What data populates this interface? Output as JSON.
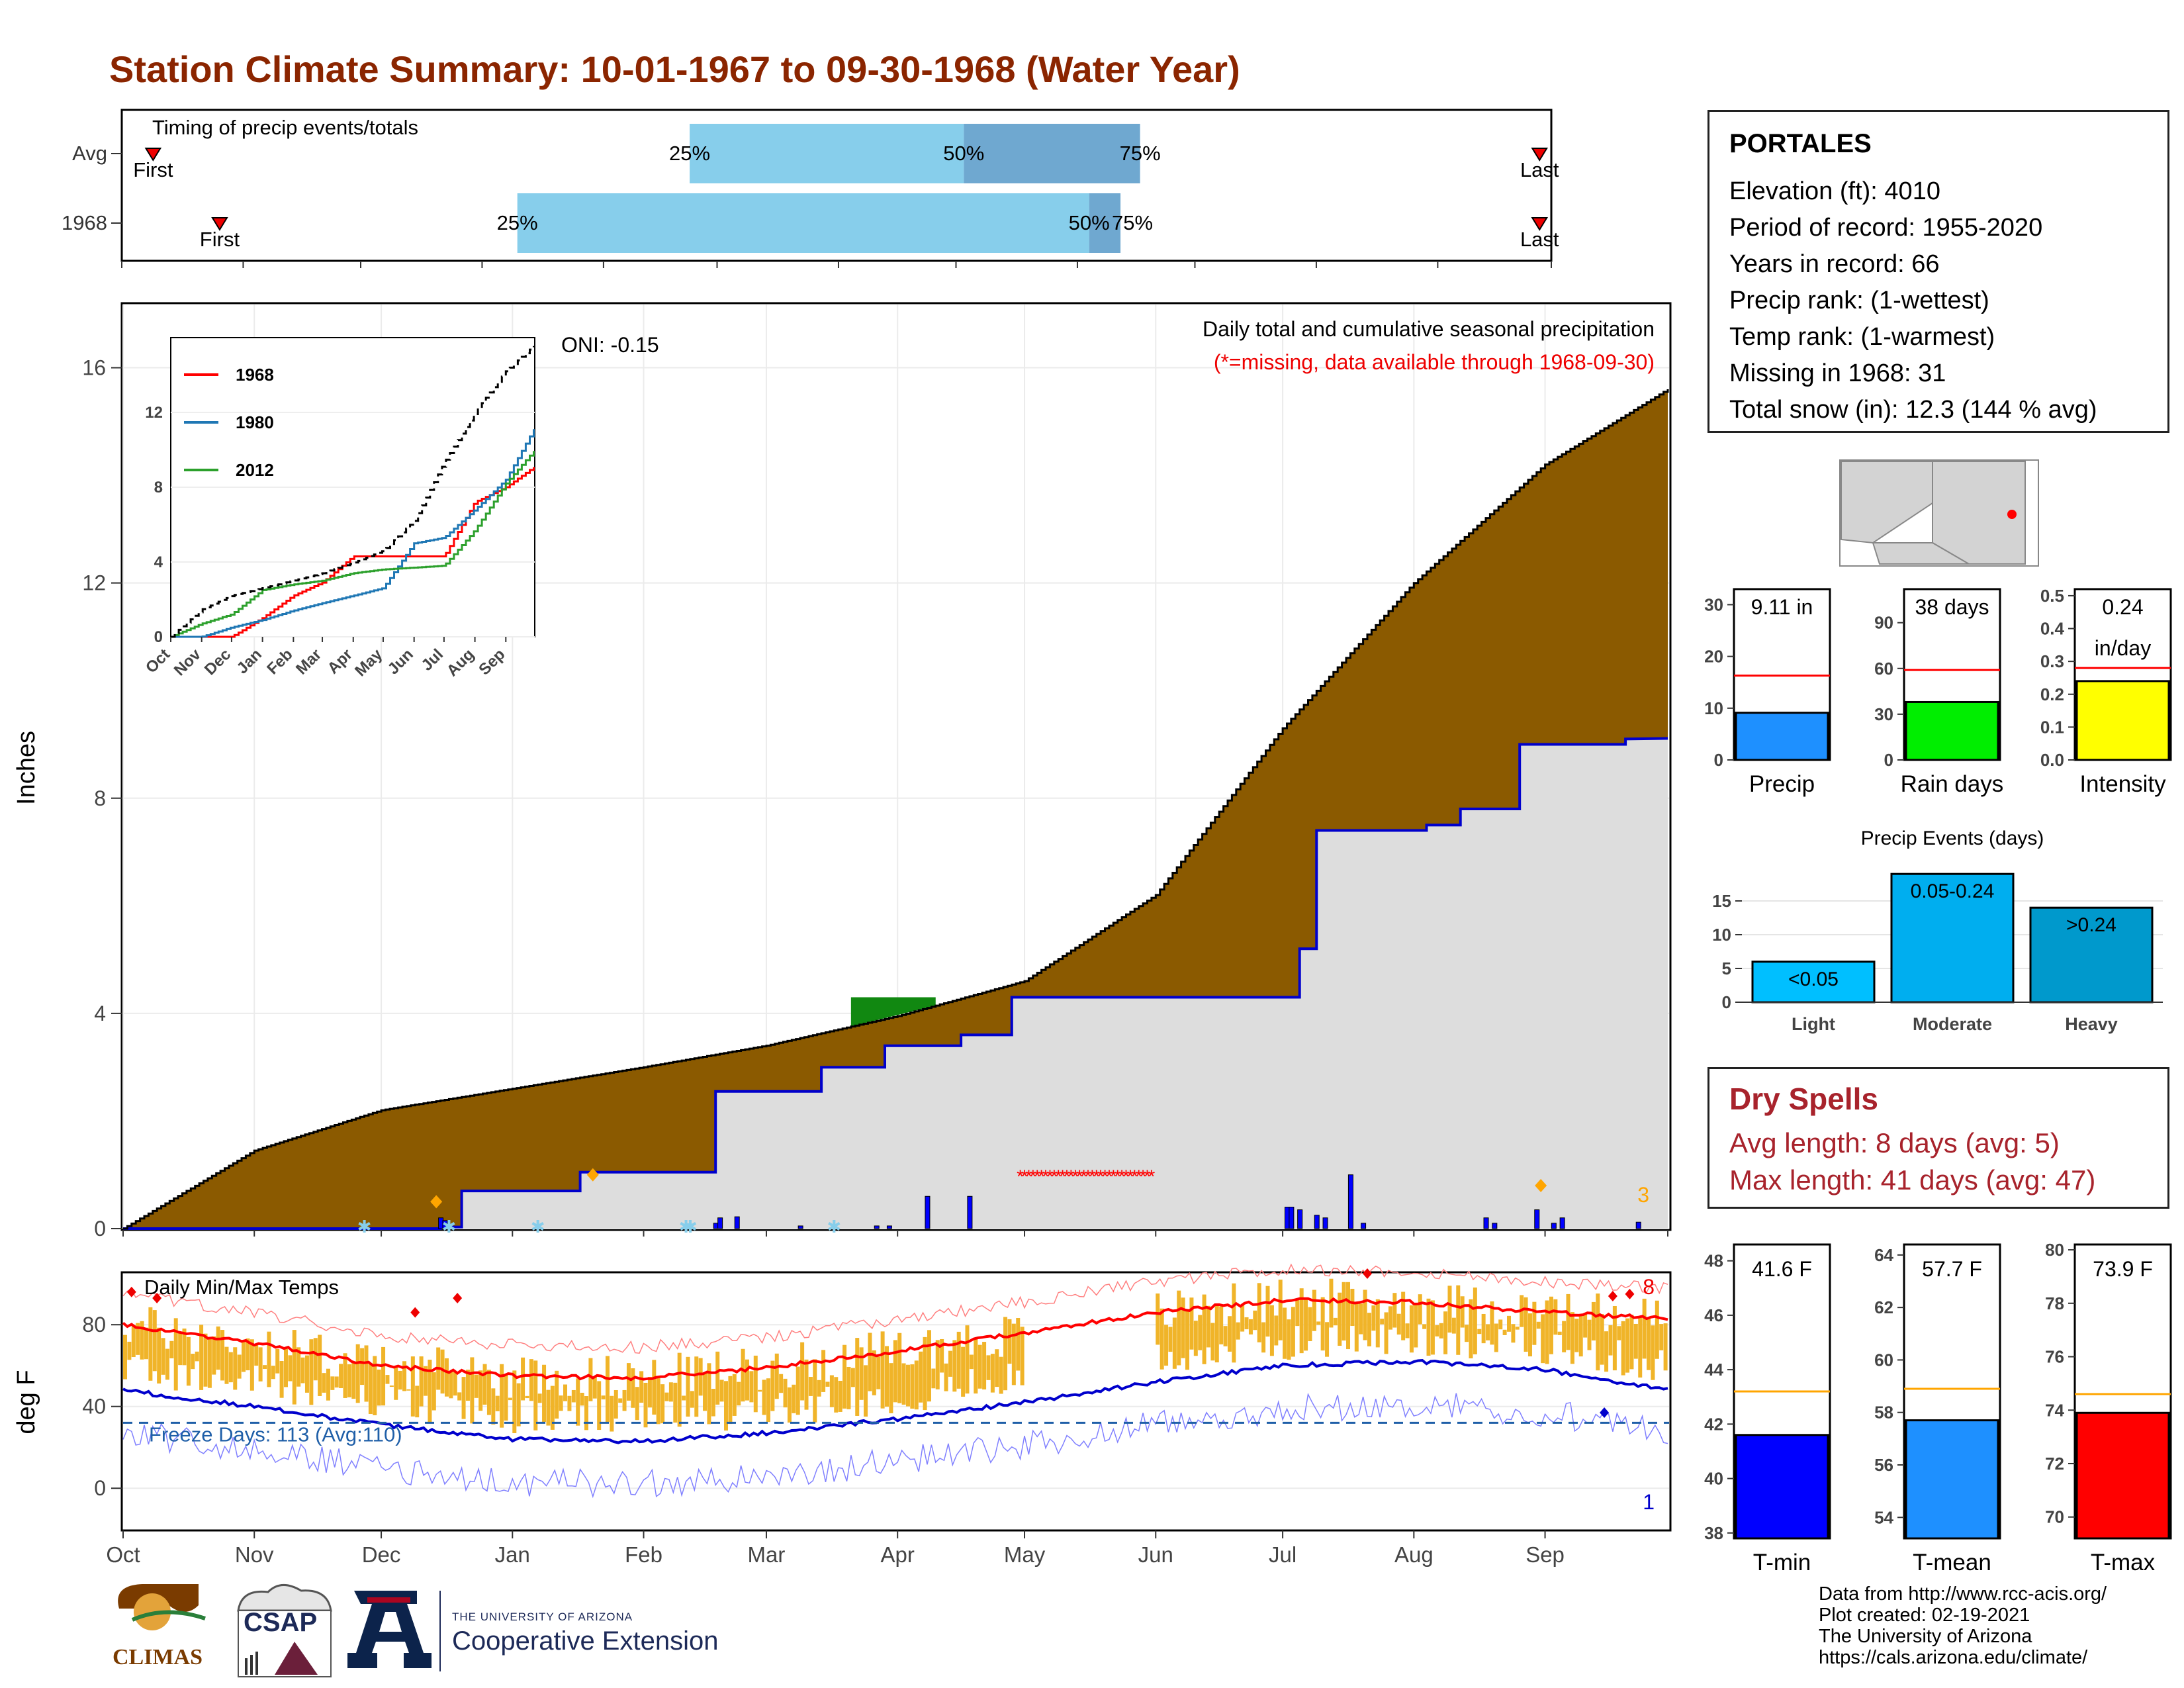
{
  "title": "Station Climate Summary: 10-01-1967 to 09-30-1968 (Water Year)",
  "colors": {
    "title": "#8b2500",
    "cumulative_fill": "#8b5a00",
    "avg_fill": "#dddddd",
    "avg_line": "#0000cc",
    "daily_bars": "#0000ff",
    "missing": "#ff0000",
    "timing_light": "#87ceeb",
    "timing_dark": "#6fa8d0",
    "temp_range": "#f0b429",
    "tmax_avg": "#ff0000",
    "tmin_avg": "#0000cc"
  },
  "timing": {
    "label": "Timing of precip events/totals",
    "rows": [
      "Avg",
      "1968"
    ],
    "first_label": "First",
    "last_label": "Last",
    "p25_label": "25%",
    "p50_label": "50%",
    "p75_label": "75%"
  },
  "precip_panel": {
    "ylabel": "Inches",
    "oni": "ONI: -0.15",
    "legend_title": "Daily total and cumulative seasonal precipitation",
    "missing_note": "(*=missing, data available through 1968-09-30)",
    "count_label": "3"
  },
  "inset": {
    "series": [
      "1968",
      "1980",
      "2012"
    ],
    "months": [
      "Oct",
      "Nov",
      "Dec",
      "Jan",
      "Feb",
      "Mar",
      "Apr",
      "May",
      "Jun",
      "Jul",
      "Aug",
      "Sep"
    ]
  },
  "temp_panel": {
    "ylabel": "deg F",
    "label": "Daily Min/Max Temps",
    "freeze": "Freeze Days: 113 (Avg:110)",
    "max_count": "8",
    "min_count": "1"
  },
  "months": [
    "Oct",
    "Nov",
    "Dec",
    "Jan",
    "Feb",
    "Mar",
    "Apr",
    "May",
    "Jun",
    "Jul",
    "Aug",
    "Sep"
  ],
  "station": {
    "name": "PORTALES",
    "lines": [
      "Elevation (ft): 4010",
      "Period of record: 1955-2020",
      "Years in record: 66",
      "Precip rank:  (1-wettest)",
      "Temp rank:  (1-warmest)",
      "Missing in 1968: 31",
      "Total snow (in): 12.3 (144 % avg)"
    ]
  },
  "summary_bars": [
    {
      "name": "Precip",
      "label": "9.11 in",
      "value": 9.11,
      "avg": 16.3,
      "ymax": 33,
      "ticks": [
        0,
        10,
        20,
        30
      ],
      "color": "#1e90ff"
    },
    {
      "name": "Rain days",
      "label": "38 days",
      "value": 38,
      "avg": 59,
      "ymax": 112,
      "ticks": [
        0,
        30,
        60,
        90
      ],
      "color": "#00ee00"
    },
    {
      "name": "Intensity",
      "label": "0.24",
      "label2": "in/day",
      "value": 0.24,
      "avg": 0.28,
      "ymax": 0.52,
      "ticks": [
        "0.0",
        "0.1",
        "0.2",
        "0.3",
        "0.4",
        "0.5"
      ],
      "color": "#ffff00"
    }
  ],
  "events": {
    "title": "Precip Events (days)",
    "categories": [
      "Light",
      "Moderate",
      "Heavy"
    ],
    "labels": [
      "<0.05",
      "0.05-0.24",
      ">0.24"
    ],
    "values": [
      6,
      19,
      14
    ],
    "ticks": [
      0,
      5,
      10,
      15
    ]
  },
  "dry": {
    "title": "Dry Spells",
    "avg": "Avg length: 8 days (avg: 5)",
    "max": "Max length: 41 days (avg: 47)"
  },
  "temp_bars": [
    {
      "name": "T-min",
      "label": "41.6 F",
      "value": 41.6,
      "avg": 43.2,
      "ymin": 37.8,
      "ymax": 48.6,
      "ticks": [
        38,
        40,
        42,
        44,
        46,
        48
      ],
      "color": "#0000ff"
    },
    {
      "name": "T-mean",
      "label": "57.7 F",
      "value": 57.7,
      "avg": 58.9,
      "ymin": 53.2,
      "ymax": 64.4,
      "ticks": [
        54,
        56,
        58,
        60,
        62,
        64
      ],
      "color": "#1e90ff"
    },
    {
      "name": "T-max",
      "label": "73.9 F",
      "value": 73.9,
      "avg": 74.6,
      "ymin": 69.2,
      "ymax": 80.2,
      "ticks": [
        70,
        72,
        74,
        76,
        78,
        80
      ],
      "color": "#ff0000"
    }
  ],
  "credits": [
    "Data from http://www.rcc-acis.org/",
    "Plot created: 02-19-2021",
    "The University of Arizona",
    "https://cals.arizona.edu/climate/"
  ],
  "logos": {
    "climas": "CLIMAS",
    "csap": "CSAP",
    "ua_small": "THE UNIVERSITY OF ARIZONA",
    "ua_big": "Cooperative Extension"
  },
  "chart_data": [
    {
      "type": "area",
      "title": "Daily total and cumulative seasonal precipitation",
      "ylabel": "Inches",
      "ylim": [
        0,
        17.2
      ],
      "x": [
        "Oct",
        "Nov",
        "Dec",
        "Jan",
        "Feb",
        "Mar",
        "Apr",
        "May",
        "Jun",
        "Jul",
        "Aug",
        "Sep",
        "Sep 30"
      ],
      "series": [
        {
          "values": [
            0.0,
            1.45,
            2.2,
            2.6,
            3.0,
            3.4,
            3.95,
            4.6,
            6.2,
            9.3,
            12.0,
            14.2,
            15.6
          ]
        },
        {
          "values": [
            0.0,
            0.0,
            0.0,
            1.0,
            2.2,
            2.9,
            4.3,
            4.3,
            4.3,
            4.3,
            7.2,
            8.0,
            9.11
          ]
        }
      ]
    },
    {
      "type": "line",
      "ylim": [
        0,
        16
      ],
      "x": [
        "Oct",
        "Nov",
        "Dec",
        "Jan",
        "Feb",
        "Mar",
        "Apr",
        "May",
        "Jun",
        "Jul",
        "Aug",
        "Sep",
        "Sep 30"
      ],
      "series": [
        {
          "name": "1968",
          "values": [
            0.0,
            0.0,
            0.0,
            1.0,
            2.2,
            2.9,
            4.3,
            4.3,
            4.3,
            4.3,
            7.2,
            8.0,
            9.11
          ]
        },
        {
          "name": "1980",
          "values": [
            0.0,
            0.0,
            0.5,
            0.9,
            1.4,
            1.8,
            2.2,
            2.6,
            5.0,
            5.3,
            6.8,
            8.4,
            11.2
          ]
        },
        {
          "name": "2012",
          "values": [
            0.0,
            0.7,
            1.2,
            2.5,
            2.8,
            3.0,
            3.4,
            3.6,
            3.7,
            3.8,
            5.7,
            8.2,
            10.0
          ]
        },
        {
          "values": [
            0.0,
            1.45,
            2.2,
            2.6,
            3.0,
            3.4,
            3.95,
            4.6,
            6.2,
            9.3,
            12.0,
            14.2,
            15.6
          ]
        }
      ]
    },
    {
      "type": "line",
      "title": "Daily Min/Max Temps",
      "ylabel": "deg F",
      "ylim": [
        -20,
        105
      ],
      "x": [
        "Oct",
        "Nov",
        "Dec",
        "Jan",
        "Feb",
        "Mar",
        "Apr",
        "May",
        "Jun",
        "Jul",
        "Aug",
        "Sep",
        "Sep 30"
      ],
      "series": [
        {
          "values": [
            80,
            71,
            60,
            55,
            54,
            59,
            67,
            76,
            86,
            92,
            91,
            86,
            83
          ]
        },
        {
          "values": [
            48,
            40,
            31,
            24,
            23,
            27,
            34,
            42,
            52,
            60,
            62,
            58,
            48
          ]
        }
      ]
    }
  ]
}
